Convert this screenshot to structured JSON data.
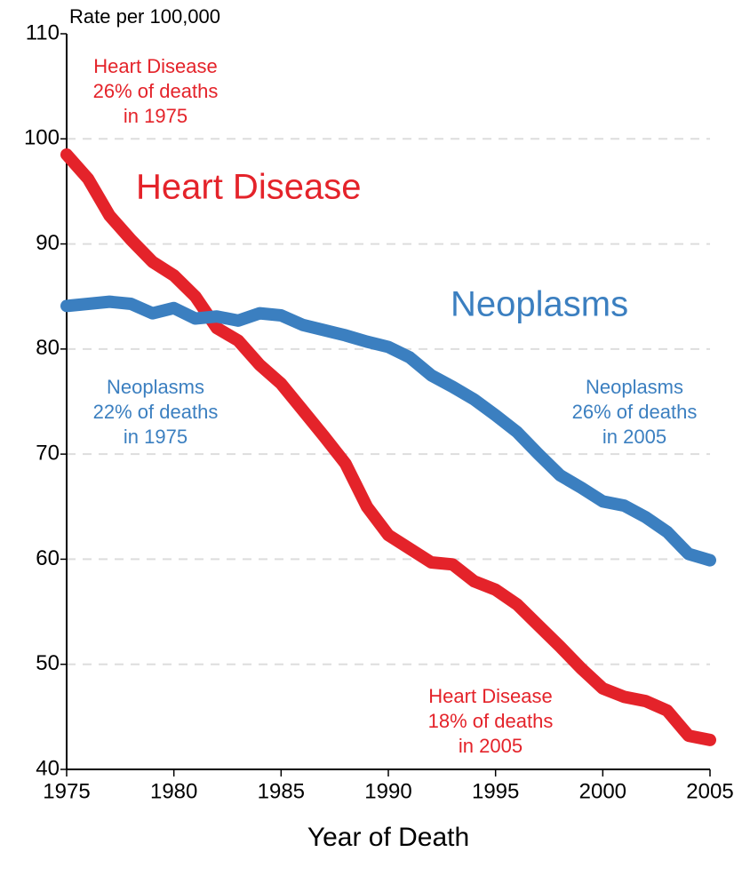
{
  "chart_data": {
    "type": "line",
    "y_label": "Rate per 100,000",
    "x_label": "Year of Death",
    "x": [
      1975,
      1976,
      1977,
      1978,
      1979,
      1980,
      1981,
      1982,
      1983,
      1984,
      1985,
      1986,
      1987,
      1988,
      1989,
      1990,
      1991,
      1992,
      1993,
      1994,
      1995,
      1996,
      1997,
      1998,
      1999,
      2000,
      2001,
      2002,
      2003,
      2004,
      2005
    ],
    "series": [
      {
        "name": "Heart Disease",
        "color": "#e4232a",
        "values": [
          98.5,
          96.2,
          92.7,
          90.4,
          88.3,
          87,
          85,
          82,
          80.8,
          78.5,
          76.7,
          74.2,
          71.7,
          69.1,
          65,
          62.3,
          61,
          59.7,
          59.5,
          57.9,
          57.1,
          55.7,
          53.7,
          51.7,
          49.6,
          47.7,
          46.9,
          46.5,
          45.6,
          43.2,
          42.8
        ]
      },
      {
        "name": "Neoplasms",
        "color": "#3b7fc0",
        "values": [
          84.1,
          84.3,
          84.5,
          84.3,
          83.4,
          83.9,
          82.9,
          83.1,
          82.7,
          83.4,
          83.2,
          82.3,
          81.8,
          81.3,
          80.7,
          80.2,
          79.2,
          77.5,
          76.4,
          75.2,
          73.7,
          72.1,
          70,
          68,
          66.8,
          65.5,
          65.1,
          64,
          62.6,
          60.5,
          59.9
        ]
      }
    ],
    "annotations": [
      {
        "series": 0,
        "lines": [
          "Heart Disease",
          "26% of deaths",
          "in 1975"
        ]
      },
      {
        "series": 1,
        "lines": [
          "Neoplasms",
          "22% of deaths",
          "in 1975"
        ]
      },
      {
        "series": 1,
        "lines": [
          "Neoplasms",
          "26% of deaths",
          "in 2005"
        ]
      },
      {
        "series": 0,
        "lines": [
          "Heart Disease",
          "18% of deaths",
          "in 2005"
        ]
      }
    ],
    "xlim": [
      1975,
      2005
    ],
    "xticks": [
      1975,
      1980,
      1985,
      1990,
      1995,
      2000,
      2005
    ],
    "ylim": [
      40,
      110
    ],
    "yticks": [
      40,
      50,
      60,
      70,
      80,
      90,
      100,
      110
    ],
    "grid": true
  }
}
